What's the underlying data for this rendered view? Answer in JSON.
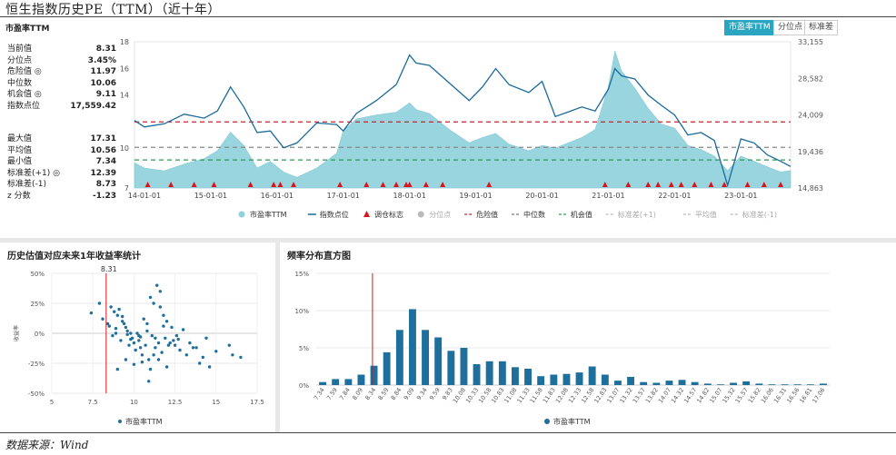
{
  "page_title": "恒生指数历史PE（TTM）（近十年）",
  "source": "数据来源：Wind",
  "top": {
    "header": "市盈率TTM",
    "toggles": [
      {
        "label": "市盈率TTM",
        "active": true
      },
      {
        "label": "分位点",
        "active": false
      },
      {
        "label": "标准差",
        "active": false
      }
    ],
    "stats_a": [
      {
        "label": "当前值",
        "value": "8.31"
      },
      {
        "label": "分位点",
        "value": "3.45%"
      },
      {
        "label": "危险值 ◎",
        "value": "11.97"
      },
      {
        "label": "中位数",
        "value": "10.06"
      },
      {
        "label": "机会值 ◎",
        "value": "9.11"
      },
      {
        "label": "指数点位",
        "value": "17,559.42"
      }
    ],
    "stats_b": [
      {
        "label": "最大值",
        "value": "17.31"
      },
      {
        "label": "平均值",
        "value": "10.56"
      },
      {
        "label": "最小值",
        "value": "7.34"
      },
      {
        "label": "标准差(+1) ◎",
        "value": "12.39"
      },
      {
        "label": "标准差(-1)",
        "value": "8.73"
      },
      {
        "label": "z 分数",
        "value": "-1.23"
      }
    ],
    "legend": [
      {
        "label": "市盈率TTM",
        "symbol": "dot",
        "color": "#8fd1dc"
      },
      {
        "label": "指数点位",
        "symbol": "line",
        "color": "#1a6a9a"
      },
      {
        "label": "调仓标志",
        "symbol": "triangle",
        "color": "#d9151c"
      },
      {
        "label": "分位点",
        "symbol": "dot",
        "color": "#bbbbbb"
      },
      {
        "label": "危险值",
        "symbol": "dash",
        "color": "#c8232c"
      },
      {
        "label": "中位数",
        "symbol": "dash",
        "color": "#777777"
      },
      {
        "label": "机会值",
        "symbol": "dash",
        "color": "#2e9a55"
      },
      {
        "label": "标准差(+1)",
        "symbol": "dash",
        "color": "#bbbbbb"
      },
      {
        "label": "平均值",
        "symbol": "dash",
        "color": "#bbbbbb"
      },
      {
        "label": "标准差(-1)",
        "symbol": "dash",
        "color": "#bbbbbb"
      }
    ]
  },
  "scatter_panel_title": "历史估值对应未来1年收益率统计",
  "hist_panel_title": "频率分布直方图",
  "chart_data": [
    {
      "type": "area",
      "title": "市盈率TTM",
      "x_tick_labels": [
        "14-01-01",
        "15-01-01",
        "16-01-01",
        "17-01-01",
        "18-01-01",
        "19-01-01",
        "20-01-01",
        "21-01-01",
        "22-01-01",
        "23-01-01"
      ],
      "x_range": [
        2013.85,
        2023.75
      ],
      "y_left_ticks": [
        7,
        10,
        14,
        16,
        18
      ],
      "y_left_range": [
        7,
        18
      ],
      "y_right_ticks": [
        "14,863",
        "19,436",
        "24,009",
        "28,582",
        "33,155"
      ],
      "y_right_range": [
        14863,
        33155
      ],
      "pe_series": {
        "name": "市盈率TTM",
        "x": [
          2013.85,
          2014.0,
          2014.3,
          2014.6,
          2014.9,
          2015.1,
          2015.3,
          2015.5,
          2015.7,
          2015.9,
          2016.1,
          2016.3,
          2016.6,
          2016.9,
          2017.0,
          2017.2,
          2017.5,
          2017.8,
          2018.0,
          2018.1,
          2018.3,
          2018.6,
          2018.9,
          2019.1,
          2019.3,
          2019.5,
          2019.8,
          2020.0,
          2020.2,
          2020.4,
          2020.6,
          2020.8,
          2021.0,
          2021.1,
          2021.2,
          2021.4,
          2021.6,
          2021.8,
          2022.0,
          2022.2,
          2022.4,
          2022.6,
          2022.8,
          2023.0,
          2023.2,
          2023.4,
          2023.6,
          2023.75
        ],
        "y": [
          8.9,
          8.5,
          8.3,
          8.8,
          9.2,
          9.8,
          11.2,
          10.2,
          8.5,
          9.0,
          8.2,
          7.8,
          8.5,
          9.6,
          11.3,
          12.2,
          12.5,
          12.7,
          13.4,
          12.9,
          12.6,
          11.4,
          10.4,
          10.8,
          11.1,
          10.3,
          9.8,
          10.2,
          10.0,
          10.4,
          10.8,
          11.4,
          14.6,
          17.31,
          15.8,
          14.5,
          13.0,
          11.8,
          11.5,
          10.2,
          9.9,
          9.4,
          8.3,
          9.4,
          9.0,
          8.6,
          8.2,
          8.31
        ]
      },
      "index_series": {
        "name": "指数点位",
        "x": [
          2013.85,
          2014.0,
          2014.3,
          2014.6,
          2014.9,
          2015.1,
          2015.3,
          2015.5,
          2015.7,
          2015.9,
          2016.1,
          2016.3,
          2016.6,
          2016.9,
          2017.0,
          2017.2,
          2017.5,
          2017.8,
          2018.0,
          2018.1,
          2018.3,
          2018.6,
          2018.9,
          2019.1,
          2019.3,
          2019.5,
          2019.8,
          2020.0,
          2020.2,
          2020.4,
          2020.6,
          2020.8,
          2021.0,
          2021.1,
          2021.2,
          2021.4,
          2021.6,
          2021.8,
          2022.0,
          2022.2,
          2022.4,
          2022.6,
          2022.8,
          2023.0,
          2023.2,
          2023.4,
          2023.6,
          2023.75
        ],
        "y": [
          23300,
          22500,
          22900,
          24100,
          23600,
          24500,
          27500,
          25000,
          21800,
          22000,
          19900,
          20500,
          23000,
          22800,
          22000,
          24200,
          25800,
          27800,
          31500,
          30500,
          30200,
          28000,
          25800,
          27500,
          29800,
          27800,
          26800,
          28200,
          23800,
          24400,
          25000,
          24500,
          27200,
          29800,
          28900,
          28500,
          26500,
          25200,
          24000,
          21500,
          21800,
          20800,
          15200,
          21000,
          20500,
          19000,
          18200,
          17559
        ]
      },
      "danger_value": 11.97,
      "median_value": 10.06,
      "opportunity_value": 9.11,
      "rebalance_markers_x": [
        2014.05,
        2014.4,
        2014.75,
        2015.05,
        2015.6,
        2015.95,
        2016.05,
        2016.25,
        2016.95,
        2017.35,
        2017.6,
        2017.8,
        2017.95,
        2018.0,
        2018.25,
        2018.5,
        2019.2,
        2020.95,
        2021.3,
        2021.6,
        2021.75,
        2021.95,
        2022.1,
        2022.3,
        2022.55,
        2022.75,
        2023.1,
        2023.35,
        2023.6
      ]
    },
    {
      "type": "scatter",
      "x_ticks": [
        5,
        7.5,
        10,
        12.5,
        15,
        17.5
      ],
      "xlim": [
        5,
        17.5
      ],
      "y_ticks": [
        "50%",
        "25%",
        "0%",
        "-25%",
        "-50%"
      ],
      "ylim": [
        -50,
        50
      ],
      "ylabel": "收益率",
      "current_value_label": "8.31",
      "current_value": 8.31,
      "legend": "市盈率TTM",
      "points_x": [
        7.4,
        7.9,
        8.1,
        8.4,
        8.6,
        8.8,
        9.0,
        9.1,
        9.3,
        9.5,
        9.6,
        9.8,
        10.0,
        10.2,
        10.4,
        10.6,
        10.8,
        11.0,
        11.2,
        11.4,
        11.6,
        11.8,
        12.0,
        12.3,
        12.6,
        13.0,
        13.4,
        13.8,
        14.2,
        15.0,
        16.0,
        16.5,
        8.7,
        8.9,
        9.2,
        9.4,
        9.7,
        9.9,
        10.1,
        10.3,
        10.5,
        10.7,
        10.9,
        11.1,
        11.3,
        11.5,
        11.7,
        11.9,
        12.1,
        12.4,
        12.8,
        13.2,
        14.0,
        14.6,
        9.0,
        9.5,
        10.0,
        10.5,
        11.0,
        11.5,
        12.0,
        12.5,
        8.5,
        9.3,
        9.8,
        10.3,
        10.8,
        11.3,
        11.8,
        12.2,
        9.6,
        10.4,
        11.2,
        12.7,
        14.4,
        8.9,
        10.9,
        11.6,
        13.6,
        15.8
      ],
      "points_y": [
        17,
        25,
        12,
        8,
        22,
        18,
        15,
        20,
        10,
        5,
        2,
        -5,
        -8,
        0,
        -3,
        12,
        8,
        30,
        25,
        40,
        35,
        15,
        10,
        5,
        -2,
        3,
        -8,
        -12,
        -20,
        -15,
        -18,
        -20,
        -2,
        4,
        -6,
        8,
        -10,
        -4,
        -14,
        -6,
        -18,
        -10,
        -22,
        -2,
        -12,
        -8,
        -16,
        -4,
        -10,
        -6,
        -14,
        -18,
        -25,
        -28,
        -30,
        -22,
        -26,
        -24,
        -30,
        -22,
        -28,
        -10,
        6,
        14,
        0,
        -2,
        2,
        -4,
        6,
        -8,
        -1,
        -12,
        -18,
        -5,
        -4,
        0,
        -40,
        22,
        -12,
        -10
      ]
    },
    {
      "type": "bar",
      "categories": [
        "7.34",
        "7.59",
        "7.84",
        "8.09",
        "8.34",
        "8.59",
        "8.84",
        "9.09",
        "9.34",
        "9.59",
        "9.83",
        "10.08",
        "10.33",
        "10.58",
        "10.83",
        "11.08",
        "11.33",
        "11.58",
        "11.83",
        "12.08",
        "12.33",
        "12.58",
        "12.83",
        "13.07",
        "13.32",
        "13.57",
        "13.82",
        "14.07",
        "14.32",
        "14.57",
        "14.82",
        "15.07",
        "15.32",
        "15.57",
        "15.82",
        "16.06",
        "16.31",
        "16.56",
        "16.81",
        "17.06"
      ],
      "values": [
        0.4,
        0.8,
        0.8,
        1.4,
        2.6,
        4.4,
        7.4,
        10.2,
        7.4,
        6.4,
        4.6,
        5.0,
        2.8,
        3.2,
        3.2,
        2.4,
        2.2,
        1.2,
        1.4,
        1.5,
        1.7,
        2.5,
        1.4,
        0.6,
        1.1,
        0.4,
        0.3,
        0.6,
        0.7,
        0.4,
        0.2,
        0.1,
        0.3,
        0.5,
        0.2,
        0.1,
        0.1,
        0.1,
        0.1,
        0.2
      ],
      "y_ticks": [
        "15%",
        "10%",
        "5%",
        "0%"
      ],
      "ylim": [
        0,
        15
      ],
      "current_value": 8.31,
      "legend": "市盈率TTM"
    }
  ]
}
